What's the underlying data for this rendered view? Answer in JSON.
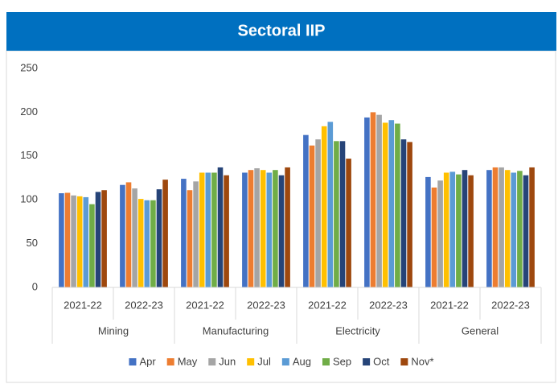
{
  "chart_data": {
    "type": "bar",
    "title": "Sectoral IIP",
    "groups": [
      "Mining",
      "Manufacturing",
      "Electricity",
      "General"
    ],
    "categories": [
      "2021-22",
      "2022-23",
      "2021-22",
      "2022-23",
      "2021-22",
      "2022-23",
      "2021-22",
      "2022-23"
    ],
    "series": [
      {
        "name": "Apr",
        "color": "#4472c4",
        "values": [
          107.5,
          117,
          124,
          131,
          174,
          194,
          126,
          134
        ]
      },
      {
        "name": "May",
        "color": "#ed7d31",
        "values": [
          108,
          120,
          111,
          134,
          162,
          200,
          114,
          137
        ]
      },
      {
        "name": "Jun",
        "color": "#a5a5a5",
        "values": [
          105,
          113,
          121,
          136,
          169,
          197,
          122,
          137
        ]
      },
      {
        "name": "Jul",
        "color": "#ffc000",
        "values": [
          104,
          101,
          131,
          134,
          184,
          188,
          131,
          134
        ]
      },
      {
        "name": "Aug",
        "color": "#5b9bd5",
        "values": [
          103,
          99.5,
          131,
          131,
          189,
          191,
          132,
          131
        ]
      },
      {
        "name": "Sep",
        "color": "#70ad47",
        "values": [
          95,
          99.5,
          131,
          134,
          167,
          187,
          129,
          133
        ]
      },
      {
        "name": "Oct",
        "color": "#264478",
        "values": [
          109,
          112,
          137,
          128,
          167,
          169,
          134,
          128
        ]
      },
      {
        "name": "Nov*",
        "color": "#9e480e",
        "values": [
          111,
          123,
          128,
          137,
          147,
          166,
          128,
          137
        ]
      }
    ],
    "ylim": [
      0,
      250
    ],
    "yticks": [
      0,
      50,
      100,
      150,
      200,
      250
    ],
    "grid": false,
    "legend": "bottom",
    "title_color": "#0070c0"
  }
}
